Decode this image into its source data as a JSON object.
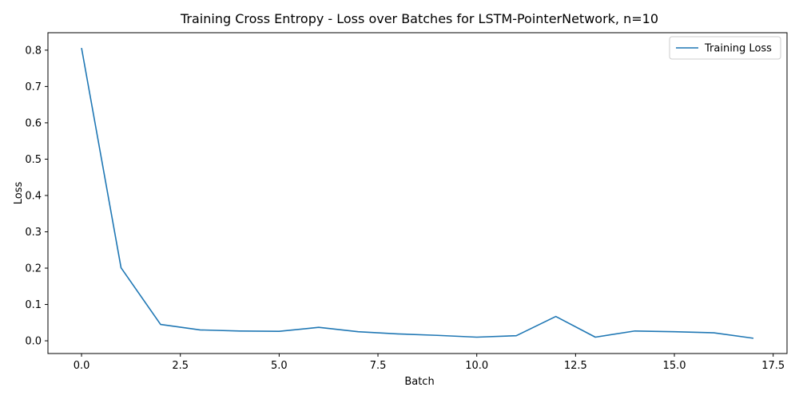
{
  "chart_data": {
    "type": "line",
    "title": "Training Cross Entropy - Loss over Batches for LSTM-PointerNetwork, n=10",
    "xlabel": "Batch",
    "ylabel": "Loss",
    "xlim": [
      -0.85,
      17.85
    ],
    "ylim": [
      -0.035,
      0.848
    ],
    "xticks": [
      0.0,
      2.5,
      5.0,
      7.5,
      10.0,
      12.5,
      15.0,
      17.5
    ],
    "xtick_labels": [
      "0.0",
      "2.5",
      "5.0",
      "7.5",
      "10.0",
      "12.5",
      "15.0",
      "17.5"
    ],
    "yticks": [
      0.0,
      0.1,
      0.2,
      0.3,
      0.4,
      0.5,
      0.6,
      0.7,
      0.8
    ],
    "ytick_labels": [
      "0.0",
      "0.1",
      "0.2",
      "0.3",
      "0.4",
      "0.5",
      "0.6",
      "0.7",
      "0.8"
    ],
    "grid": false,
    "legend_position": "top-right",
    "series": [
      {
        "name": "Training Loss",
        "color": "#1f77b4",
        "x": [
          0,
          1,
          2,
          3,
          4,
          5,
          6,
          7,
          8,
          9,
          10,
          11,
          12,
          13,
          14,
          15,
          16,
          17
        ],
        "values": [
          0.806,
          0.201,
          0.045,
          0.03,
          0.027,
          0.026,
          0.037,
          0.025,
          0.019,
          0.015,
          0.01,
          0.014,
          0.067,
          0.01,
          0.027,
          0.025,
          0.022,
          0.007
        ]
      }
    ]
  }
}
